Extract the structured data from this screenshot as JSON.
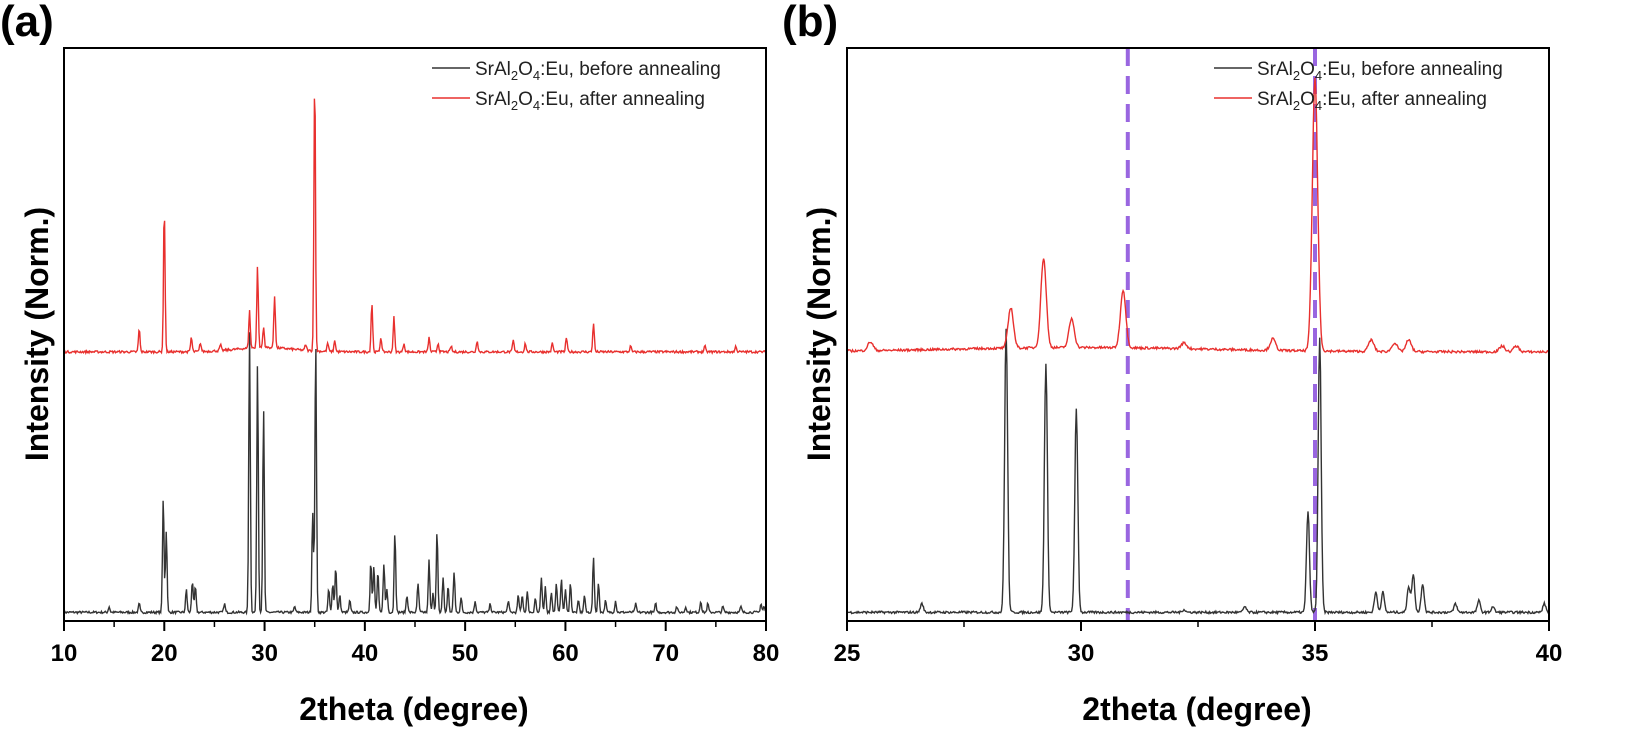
{
  "chart_data": [
    {
      "panel": "(a)",
      "type": "line",
      "xlabel": "2theta (degree)",
      "ylabel": "Intensity (Norm.)",
      "xlim": [
        10,
        80
      ],
      "x_ticks": [
        10,
        20,
        30,
        40,
        50,
        60,
        70,
        80
      ],
      "y_ticks_shown": false,
      "grid": false,
      "legend_position": "top-right",
      "series": [
        {
          "name": "SrAl2O4:Eu, before annealing",
          "color": "#333333",
          "baseline": 0,
          "peaks": [
            [
              14.5,
              0.02
            ],
            [
              17.5,
              0.03
            ],
            [
              19.9,
              0.4
            ],
            [
              20.2,
              0.28
            ],
            [
              22.2,
              0.08
            ],
            [
              22.8,
              0.11
            ],
            [
              23.1,
              0.09
            ],
            [
              26.0,
              0.03
            ],
            [
              28.5,
              0.98
            ],
            [
              29.3,
              0.86
            ],
            [
              29.9,
              0.7
            ],
            [
              33.0,
              0.02
            ],
            [
              34.8,
              0.35
            ],
            [
              35.1,
              0.95
            ],
            [
              36.4,
              0.08
            ],
            [
              36.8,
              0.1
            ],
            [
              37.1,
              0.16
            ],
            [
              37.5,
              0.06
            ],
            [
              38.5,
              0.04
            ],
            [
              40.6,
              0.18
            ],
            [
              40.9,
              0.16
            ],
            [
              41.3,
              0.14
            ],
            [
              41.9,
              0.17
            ],
            [
              42.2,
              0.08
            ],
            [
              43.0,
              0.28
            ],
            [
              44.2,
              0.06
            ],
            [
              45.3,
              0.1
            ],
            [
              46.4,
              0.18
            ],
            [
              46.8,
              0.07
            ],
            [
              47.2,
              0.28
            ],
            [
              47.8,
              0.12
            ],
            [
              48.3,
              0.09
            ],
            [
              48.9,
              0.14
            ],
            [
              49.6,
              0.05
            ],
            [
              51.0,
              0.04
            ],
            [
              52.5,
              0.03
            ],
            [
              54.3,
              0.04
            ],
            [
              55.3,
              0.06
            ],
            [
              55.7,
              0.06
            ],
            [
              56.2,
              0.07
            ],
            [
              57.0,
              0.05
            ],
            [
              57.6,
              0.12
            ],
            [
              58.0,
              0.09
            ],
            [
              58.6,
              0.07
            ],
            [
              59.1,
              0.1
            ],
            [
              59.6,
              0.12
            ],
            [
              60.0,
              0.08
            ],
            [
              60.5,
              0.1
            ],
            [
              61.3,
              0.04
            ],
            [
              61.9,
              0.06
            ],
            [
              62.8,
              0.19
            ],
            [
              63.3,
              0.1
            ],
            [
              64.0,
              0.04
            ],
            [
              65.0,
              0.04
            ],
            [
              67.0,
              0.03
            ],
            [
              69.0,
              0.03
            ],
            [
              71.1,
              0.02
            ],
            [
              72.0,
              0.02
            ],
            [
              73.5,
              0.04
            ],
            [
              74.2,
              0.03
            ],
            [
              75.7,
              0.02
            ],
            [
              77.5,
              0.02
            ],
            [
              79.5,
              0.03
            ],
            [
              79.8,
              0.02
            ]
          ]
        },
        {
          "name": "SrAl2O4:Eu, after annealing",
          "color": "#e8302e",
          "baseline": 0.9,
          "peaks": [
            [
              17.5,
              0.08
            ],
            [
              20.0,
              0.5
            ],
            [
              22.7,
              0.05
            ],
            [
              23.6,
              0.03
            ],
            [
              25.6,
              0.02
            ],
            [
              28.5,
              0.13
            ],
            [
              29.3,
              0.28
            ],
            [
              29.9,
              0.07
            ],
            [
              31.0,
              0.18
            ],
            [
              34.1,
              0.02
            ],
            [
              35.0,
              0.96
            ],
            [
              36.3,
              0.03
            ],
            [
              37.0,
              0.04
            ],
            [
              40.7,
              0.17
            ],
            [
              41.6,
              0.05
            ],
            [
              42.9,
              0.12
            ],
            [
              43.9,
              0.03
            ],
            [
              46.4,
              0.05
            ],
            [
              47.3,
              0.03
            ],
            [
              48.6,
              0.02
            ],
            [
              51.2,
              0.04
            ],
            [
              54.8,
              0.04
            ],
            [
              56.0,
              0.03
            ],
            [
              58.7,
              0.03
            ],
            [
              60.1,
              0.05
            ],
            [
              62.8,
              0.1
            ],
            [
              66.5,
              0.02
            ],
            [
              73.9,
              0.02
            ],
            [
              77.0,
              0.02
            ]
          ]
        }
      ],
      "ylim": [
        -0.03,
        1.95
      ]
    },
    {
      "panel": "(b)",
      "type": "line",
      "xlabel": "2theta (degree)",
      "ylabel": "Intensity (Norm.)",
      "xlim": [
        25,
        40
      ],
      "x_ticks": [
        25,
        30,
        35,
        40
      ],
      "y_ticks_shown": false,
      "grid": false,
      "legend_position": "top-right",
      "reference_lines": [
        {
          "x": 31.0,
          "color": "#9966e0",
          "style": "dashed"
        },
        {
          "x": 35.0,
          "color": "#9966e0",
          "style": "dashed"
        }
      ],
      "series": [
        {
          "name": "SrAl2O4:Eu, before annealing",
          "color": "#333333",
          "baseline": 0,
          "peaks": [
            [
              26.6,
              0.03
            ],
            [
              28.4,
              0.98
            ],
            [
              29.25,
              0.86
            ],
            [
              29.9,
              0.7
            ],
            [
              32.2,
              0.01
            ],
            [
              33.5,
              0.02
            ],
            [
              34.85,
              0.35
            ],
            [
              35.1,
              0.95
            ],
            [
              36.3,
              0.07
            ],
            [
              36.45,
              0.07
            ],
            [
              37.0,
              0.09
            ],
            [
              37.1,
              0.13
            ],
            [
              37.3,
              0.1
            ],
            [
              38.0,
              0.03
            ],
            [
              38.5,
              0.04
            ],
            [
              38.8,
              0.02
            ],
            [
              39.9,
              0.03
            ]
          ]
        },
        {
          "name": "SrAl2O4:Eu, after annealing",
          "color": "#e8302e",
          "baseline": 0.9,
          "peaks": [
            [
              25.5,
              0.03
            ],
            [
              28.5,
              0.14
            ],
            [
              29.2,
              0.31
            ],
            [
              29.8,
              0.1
            ],
            [
              30.9,
              0.2
            ],
            [
              32.2,
              0.02
            ],
            [
              34.1,
              0.04
            ],
            [
              35.0,
              0.94
            ],
            [
              36.2,
              0.04
            ],
            [
              36.7,
              0.03
            ],
            [
              37.0,
              0.04
            ],
            [
              39.0,
              0.02
            ],
            [
              39.3,
              0.02
            ]
          ]
        }
      ],
      "ylim": [
        -0.03,
        1.95
      ]
    }
  ],
  "legend": {
    "before_prefix": "SrAl",
    "before_sub1": "2",
    "before_mid": "O",
    "before_sub2": "4",
    "before_suffix": ":Eu, before annealing",
    "after_prefix": "SrAl",
    "after_sub1": "2",
    "after_mid": "O",
    "after_sub2": "4",
    "after_suffix": ":Eu, after annealing"
  }
}
